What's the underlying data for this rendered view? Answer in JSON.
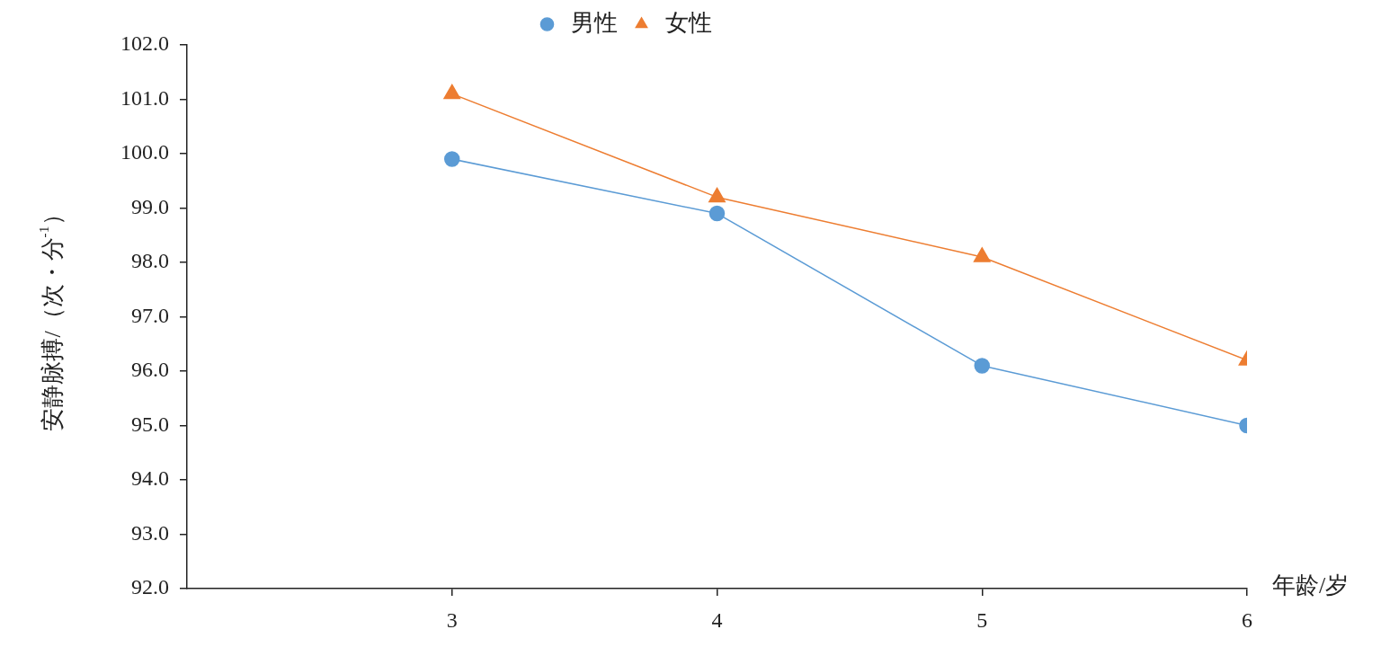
{
  "chart_data": {
    "type": "line",
    "xlabel": "年龄/岁",
    "ylabel": "安静脉搏/（次・分$^{-1}$）",
    "x": [
      3,
      4,
      5,
      6
    ],
    "xlim": [
      2,
      6
    ],
    "xticks": [
      3,
      4,
      5,
      6
    ],
    "ylim": [
      92,
      102
    ],
    "yticks": [
      {
        "value": 92,
        "label": "92.0"
      },
      {
        "value": 93,
        "label": "93.0"
      },
      {
        "value": 94,
        "label": "94.0"
      },
      {
        "value": 95,
        "label": "95.0"
      },
      {
        "value": 96,
        "label": "96.0"
      },
      {
        "value": 97,
        "label": "97.0"
      },
      {
        "value": 98,
        "label": "98.0"
      },
      {
        "value": 99,
        "label": "99.0"
      },
      {
        "value": 100,
        "label": "100.0"
      },
      {
        "value": 101,
        "label": "101.0"
      },
      {
        "value": 102,
        "label": "102.0"
      }
    ],
    "series": [
      {
        "name": "男性",
        "color": "#5b9bd5",
        "marker": "circle",
        "values": [
          99.9,
          98.9,
          96.1,
          95.0
        ]
      },
      {
        "name": "女性",
        "color": "#ed7d31",
        "marker": "triangle",
        "values": [
          101.1,
          99.2,
          98.1,
          96.2
        ]
      }
    ],
    "grid": false,
    "legend": "top",
    "line_style": "solid"
  }
}
